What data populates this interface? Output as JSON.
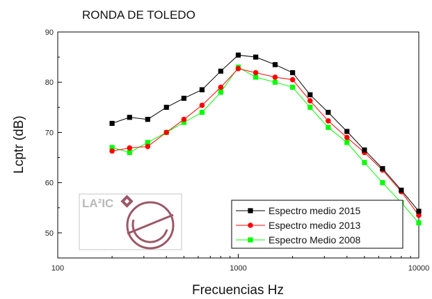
{
  "chart_data": {
    "type": "line",
    "title": "RONDA DE TOLEDO",
    "xlabel": "Frecuencias Hz",
    "ylabel": "Lcptr (dB)",
    "xscale": "log",
    "xlim": [
      100,
      10000
    ],
    "ylim": [
      45,
      90
    ],
    "xticks": [
      100,
      1000,
      10000
    ],
    "xtick_labels": [
      "100",
      "1000",
      "10000"
    ],
    "yticks": [
      50,
      60,
      70,
      80,
      90
    ],
    "ytick_labels": [
      "50",
      "60",
      "70",
      "80",
      "90"
    ],
    "grid": false,
    "legend_position": "bottom-right",
    "x": [
      200,
      250,
      315,
      400,
      500,
      630,
      800,
      1000,
      1250,
      1600,
      2000,
      2500,
      3150,
      4000,
      5000,
      6300,
      8000,
      10000
    ],
    "series": [
      {
        "name": "Espectro medio 2015",
        "color": "#000000",
        "marker": "square",
        "values": [
          71.8,
          73.0,
          72.6,
          75.0,
          76.8,
          78.5,
          82.2,
          85.4,
          85.0,
          83.5,
          81.9,
          77.5,
          74.0,
          70.2,
          66.5,
          62.8,
          58.5,
          54.3
        ]
      },
      {
        "name": "Espectro medio 2013",
        "color": "#ff0000",
        "marker": "circle",
        "values": [
          66.3,
          66.9,
          67.2,
          70.0,
          72.6,
          75.4,
          79.0,
          82.7,
          81.9,
          81.0,
          80.5,
          76.3,
          72.3,
          69.0,
          66.0,
          62.5,
          58.2,
          53.5
        ]
      },
      {
        "name": "Espectro Medio 2008",
        "color": "#00ff00",
        "marker": "square",
        "values": [
          67.0,
          66.0,
          68.0,
          70.0,
          72.0,
          74.0,
          78.0,
          83.0,
          81.0,
          80.0,
          79.0,
          75.0,
          71.0,
          68.0,
          64.0,
          60.0,
          56.0,
          52.0
        ]
      }
    ]
  },
  "logo": {
    "text": "LA²IC",
    "accent_color": "#9c5866"
  }
}
